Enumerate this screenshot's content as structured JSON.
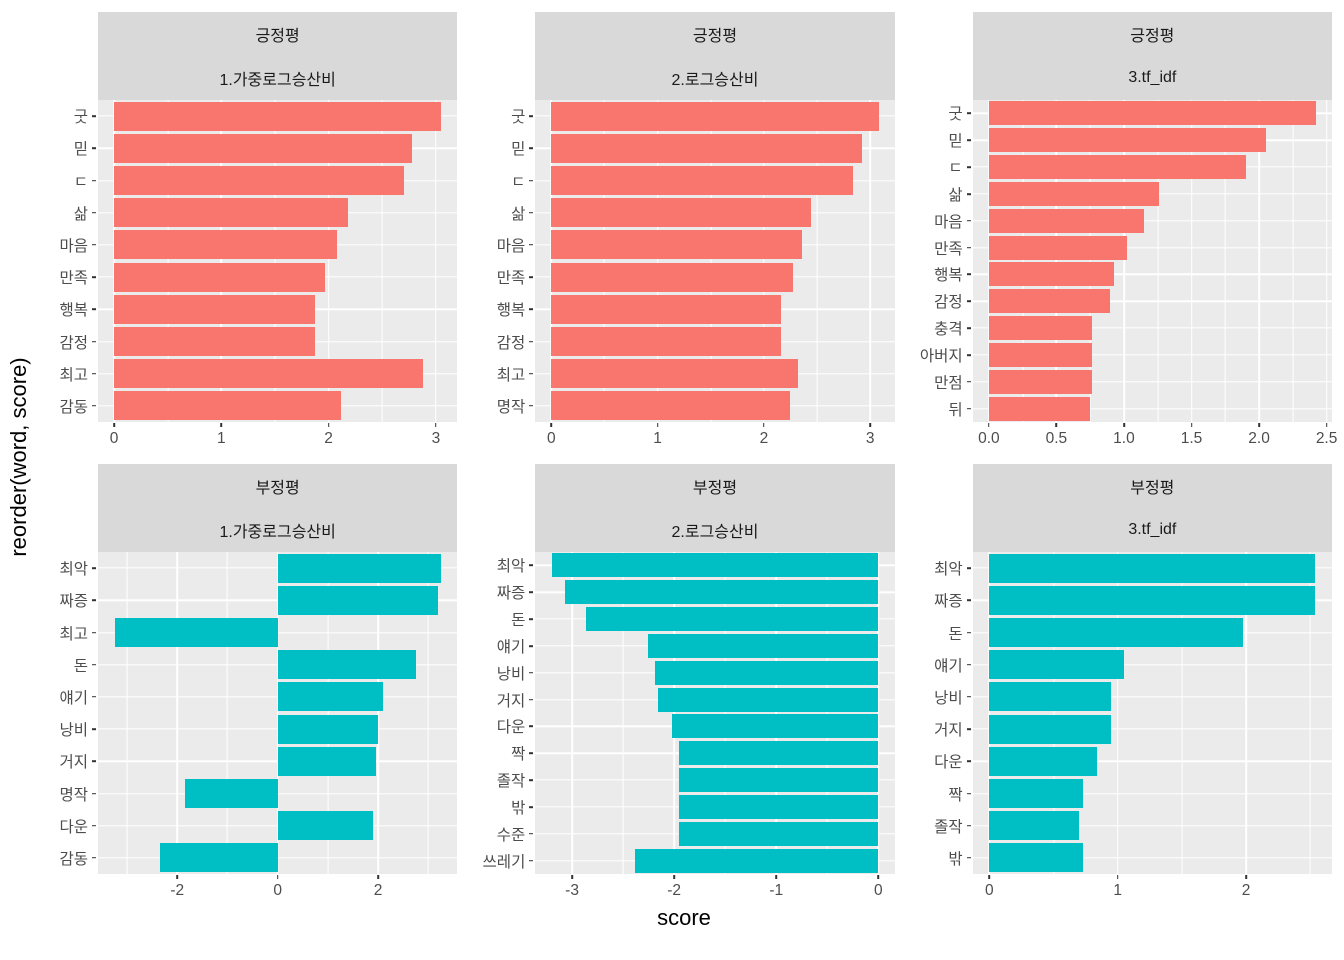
{
  "figure": {
    "ylabel": "reorder(word, score)",
    "xlabel": "score",
    "colors": {
      "positive": "#F8766D",
      "negative": "#00BFC4",
      "panel_bg": "#EBEBEB",
      "strip_bg": "#D9D9D9",
      "strip_text": "#1A1A1A",
      "grid": "#FFFFFF",
      "tick_text": "#4D4D4D",
      "tick_mark": "#333333"
    }
  },
  "chart_data": [
    {
      "type": "bar",
      "orientation": "horizontal",
      "strip_top": "긍정평",
      "strip_bottom": "1.가중로그승산비",
      "bar_color_key": "positive",
      "categories": [
        "굿",
        "믿",
        "ㄷ",
        "삶",
        "마음",
        "만족",
        "행복",
        "감정",
        "최고",
        "감동"
      ],
      "values": [
        3.05,
        2.78,
        2.7,
        2.18,
        2.08,
        1.97,
        1.87,
        1.87,
        2.88,
        2.12
      ],
      "xlim": [
        -0.15,
        3.2
      ],
      "xticks": [
        0,
        1,
        2,
        3
      ],
      "xtick_labels": [
        "0",
        "1",
        "2",
        "3"
      ]
    },
    {
      "type": "bar",
      "orientation": "horizontal",
      "strip_top": "긍정평",
      "strip_bottom": "2.로그승산비",
      "bar_color_key": "positive",
      "categories": [
        "굿",
        "믿",
        "ㄷ",
        "삶",
        "마음",
        "만족",
        "행복",
        "감정",
        "최고",
        "명작"
      ],
      "values": [
        3.08,
        2.92,
        2.84,
        2.44,
        2.36,
        2.27,
        2.16,
        2.16,
        2.32,
        2.25
      ],
      "xlim": [
        -0.15,
        3.23
      ],
      "xticks": [
        0,
        1,
        2,
        3
      ],
      "xtick_labels": [
        "0",
        "1",
        "2",
        "3"
      ]
    },
    {
      "type": "bar",
      "orientation": "horizontal",
      "strip_top": "긍정평",
      "strip_bottom": "3.tf_idf",
      "bar_color_key": "positive",
      "categories": [
        "굿",
        "믿",
        "ㄷ",
        "삶",
        "마음",
        "만족",
        "행복",
        "감정",
        "충격",
        "아버지",
        "만점",
        "뒤"
      ],
      "values": [
        2.42,
        2.05,
        1.9,
        1.26,
        1.15,
        1.02,
        0.93,
        0.9,
        0.76,
        0.76,
        0.76,
        0.75
      ],
      "xlim": [
        -0.12,
        2.54
      ],
      "xticks": [
        0,
        0.5,
        1,
        1.5,
        2,
        2.5
      ],
      "xtick_labels": [
        "0.0",
        "0.5",
        "1.0",
        "1.5",
        "2.0",
        "2.5"
      ]
    },
    {
      "type": "bar",
      "orientation": "horizontal",
      "strip_top": "부정평",
      "strip_bottom": "1.가중로그승산비",
      "bar_color_key": "negative",
      "categories": [
        "최악",
        "짜증",
        "최고",
        "돈",
        "얘기",
        "낭비",
        "거지",
        "명작",
        "다운",
        "감동"
      ],
      "values": [
        3.25,
        3.2,
        -3.25,
        2.75,
        2.1,
        2.0,
        1.95,
        -1.85,
        1.9,
        -2.35
      ],
      "xlim": [
        -3.58,
        3.58
      ],
      "xticks": [
        -2,
        0,
        2
      ],
      "xtick_labels": [
        "-2",
        "0",
        "2"
      ]
    },
    {
      "type": "bar",
      "orientation": "horizontal",
      "strip_top": "부정평",
      "strip_bottom": "2.로그승산비",
      "bar_color_key": "negative",
      "categories": [
        "최악",
        "짜증",
        "돈",
        "얘기",
        "낭비",
        "거지",
        "다운",
        "짝",
        "졸작",
        "밖",
        "수준",
        "쓰레기"
      ],
      "values": [
        -3.2,
        -3.07,
        -2.86,
        -2.26,
        -2.19,
        -2.16,
        -2.02,
        -1.95,
        -1.95,
        -1.95,
        -1.95,
        -2.38
      ],
      "xlim": [
        -3.36,
        0.16
      ],
      "xticks": [
        -3,
        -2,
        -1,
        0
      ],
      "xtick_labels": [
        "-3",
        "-2",
        "-1",
        "0"
      ]
    },
    {
      "type": "bar",
      "orientation": "horizontal",
      "strip_top": "부정평",
      "strip_bottom": "3.tf_idf",
      "bar_color_key": "negative",
      "categories": [
        "최악",
        "짜증",
        "돈",
        "얘기",
        "낭비",
        "거지",
        "다운",
        "짝",
        "졸작",
        "밖"
      ],
      "values": [
        2.54,
        2.54,
        1.98,
        1.05,
        0.95,
        0.95,
        0.84,
        0.73,
        0.7,
        0.73
      ],
      "xlim": [
        -0.13,
        2.67
      ],
      "xticks": [
        0,
        1,
        2
      ],
      "xtick_labels": [
        "0",
        "1",
        "2"
      ]
    }
  ]
}
